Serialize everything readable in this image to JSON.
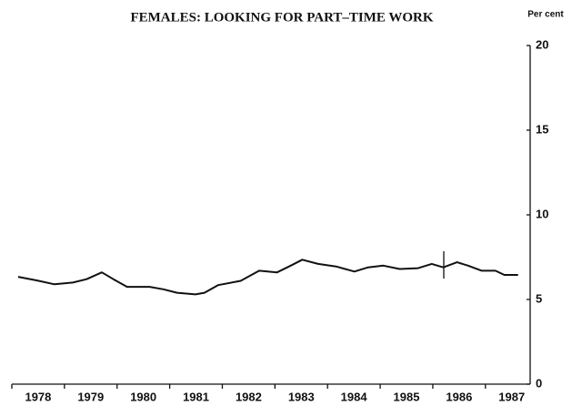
{
  "chart_data": {
    "type": "line",
    "title": "FEMALES: LOOKING FOR PART–TIME WORK",
    "y_label": "Per cent",
    "x": [
      1978.12,
      1978.47,
      1978.81,
      1979.16,
      1979.42,
      1979.71,
      1979.93,
      1980.19,
      1980.62,
      1980.88,
      1981.14,
      1981.49,
      1981.66,
      1981.92,
      1982.35,
      1982.7,
      1983.04,
      1983.3,
      1983.52,
      1983.82,
      1984.16,
      1984.51,
      1984.77,
      1985.06,
      1985.37,
      1985.72,
      1985.98,
      1986.2,
      1986.46,
      1986.67,
      1986.93,
      1987.19,
      1987.36,
      1987.62
    ],
    "values": [
      6.34,
      6.13,
      5.9,
      6.0,
      6.2,
      6.6,
      6.2,
      5.75,
      5.75,
      5.6,
      5.4,
      5.3,
      5.4,
      5.85,
      6.1,
      6.7,
      6.6,
      7.0,
      7.35,
      7.1,
      6.95,
      6.65,
      6.9,
      7.0,
      6.8,
      6.85,
      7.1,
      6.9,
      7.2,
      7.0,
      6.7,
      6.7,
      6.45,
      6.45
    ],
    "color": "#111111",
    "xlim": [
      1978.0,
      1987.85
    ],
    "xticks": [
      {
        "value": 1978.5,
        "label": "1978"
      },
      {
        "value": 1979.5,
        "label": "1979"
      },
      {
        "value": 1980.5,
        "label": "1980"
      },
      {
        "value": 1981.5,
        "label": "1981"
      },
      {
        "value": 1982.5,
        "label": "1982"
      },
      {
        "value": 1983.5,
        "label": "1983"
      },
      {
        "value": 1984.5,
        "label": "1984"
      },
      {
        "value": 1985.5,
        "label": "1985"
      },
      {
        "value": 1986.5,
        "label": "1986"
      },
      {
        "value": 1987.5,
        "label": "1987"
      }
    ],
    "ylim": [
      0,
      20
    ],
    "yticks": [
      0,
      5,
      10,
      15,
      20
    ],
    "grid": false
  }
}
